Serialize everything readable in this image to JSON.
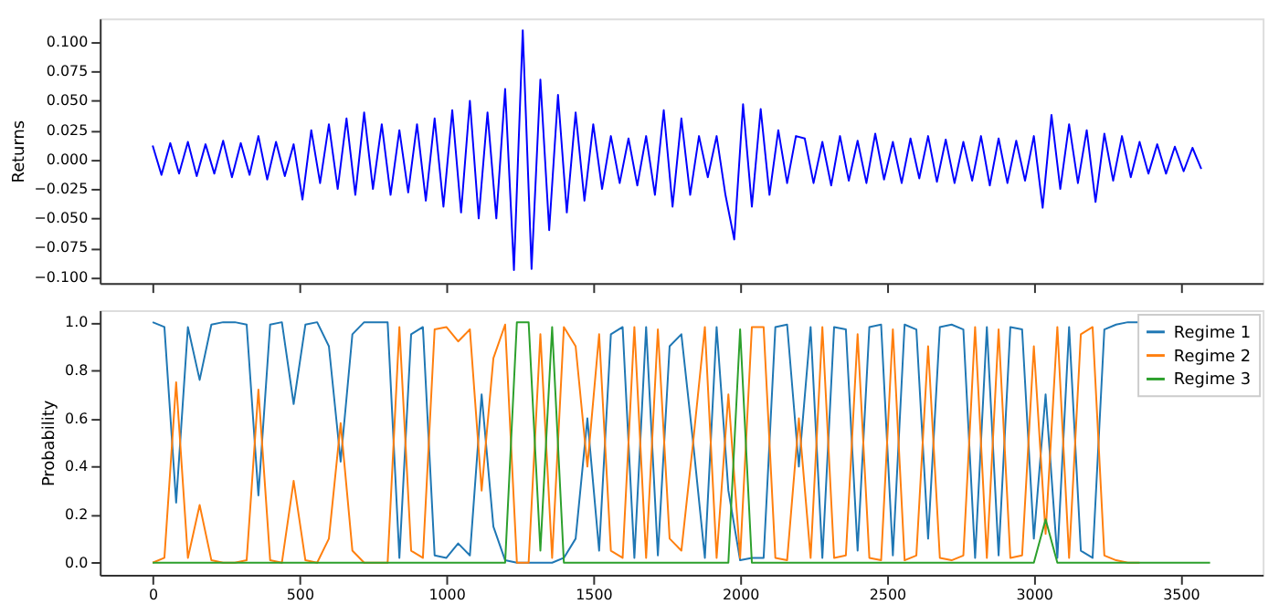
{
  "chart_data": [
    {
      "type": "line",
      "ylabel": "Returns",
      "tick_labels": "y",
      "grid": false,
      "line_style": "solid",
      "xlim": [
        -180,
        3779
      ],
      "ylim": [
        -0.105,
        0.12
      ],
      "xticks": [
        {
          "value": 0,
          "label": null
        },
        {
          "value": 500,
          "label": null
        },
        {
          "value": 1000,
          "label": null
        },
        {
          "value": 1500,
          "label": null
        },
        {
          "value": 2000,
          "label": null
        },
        {
          "value": 2500,
          "label": null
        },
        {
          "value": 3000,
          "label": null
        },
        {
          "value": 3500,
          "label": null
        }
      ],
      "yticks": [
        {
          "value": -0.1,
          "label": "−0.100"
        },
        {
          "value": -0.075,
          "label": "−0.075"
        },
        {
          "value": -0.05,
          "label": "−0.050"
        },
        {
          "value": -0.025,
          "label": "−0.025"
        },
        {
          "value": 0,
          "label": "0.000"
        },
        {
          "value": 0.025,
          "label": "0.025"
        },
        {
          "value": 0.05,
          "label": "0.050"
        },
        {
          "value": 0.075,
          "label": "0.075"
        },
        {
          "value": 0.1,
          "label": "0.100"
        }
      ],
      "series": [
        {
          "color": "#0000ff",
          "x": [
            0,
            30,
            60,
            90,
            120,
            150,
            180,
            210,
            240,
            270,
            300,
            330,
            360,
            390,
            420,
            450,
            480,
            510,
            540,
            570,
            600,
            630,
            660,
            690,
            720,
            750,
            780,
            810,
            840,
            870,
            900,
            930,
            960,
            990,
            1020,
            1050,
            1080,
            1110,
            1140,
            1170,
            1200,
            1230,
            1260,
            1290,
            1320,
            1350,
            1380,
            1410,
            1440,
            1470,
            1500,
            1530,
            1560,
            1590,
            1620,
            1650,
            1680,
            1710,
            1740,
            1770,
            1800,
            1830,
            1860,
            1890,
            1920,
            1950,
            1980,
            2010,
            2040,
            2070,
            2100,
            2130,
            2160,
            2190,
            2220,
            2250,
            2280,
            2310,
            2340,
            2370,
            2400,
            2430,
            2460,
            2490,
            2520,
            2550,
            2580,
            2610,
            2640,
            2670,
            2700,
            2730,
            2760,
            2790,
            2820,
            2850,
            2880,
            2910,
            2940,
            2970,
            3000,
            3030,
            3060,
            3090,
            3120,
            3150,
            3180,
            3210,
            3240,
            3270,
            3300,
            3330,
            3360,
            3390,
            3420,
            3450,
            3480,
            3510,
            3540,
            3570
          ],
          "values": [
            0.012,
            -0.013,
            0.014,
            -0.012,
            0.015,
            -0.014,
            0.013,
            -0.012,
            0.016,
            -0.015,
            0.014,
            -0.013,
            0.02,
            -0.017,
            0.015,
            -0.014,
            0.013,
            -0.034,
            0.025,
            -0.02,
            0.03,
            -0.025,
            0.035,
            -0.03,
            0.04,
            -0.025,
            0.03,
            -0.03,
            0.025,
            -0.028,
            0.03,
            -0.035,
            0.035,
            -0.04,
            0.042,
            -0.045,
            0.05,
            -0.05,
            0.04,
            -0.05,
            0.06,
            -0.094,
            0.11,
            -0.093,
            0.068,
            -0.06,
            0.055,
            -0.045,
            0.04,
            -0.035,
            0.03,
            -0.025,
            0.02,
            -0.02,
            0.018,
            -0.022,
            0.02,
            -0.03,
            0.042,
            -0.04,
            0.035,
            -0.03,
            0.02,
            -0.015,
            0.02,
            -0.03,
            -0.068,
            0.047,
            -0.04,
            0.043,
            -0.03,
            0.025,
            -0.02,
            0.02,
            0.018,
            -0.02,
            0.015,
            -0.022,
            0.02,
            -0.018,
            0.016,
            -0.02,
            0.022,
            -0.017,
            0.015,
            -0.02,
            0.018,
            -0.016,
            0.02,
            -0.019,
            0.017,
            -0.02,
            0.015,
            -0.018,
            0.02,
            -0.022,
            0.018,
            -0.02,
            0.016,
            -0.018,
            0.02,
            -0.041,
            0.038,
            -0.025,
            0.03,
            -0.02,
            0.025,
            -0.036,
            0.022,
            -0.018,
            0.02,
            -0.015,
            0.015,
            -0.012,
            0.013,
            -0.012,
            0.011,
            -0.01,
            0.01,
            -0.008
          ]
        }
      ]
    },
    {
      "type": "line",
      "ylabel": "Probability",
      "grid": false,
      "legend": "top right",
      "line_style": "solid",
      "xlim": [
        -180,
        3779
      ],
      "ylim": [
        -0.05,
        1.05
      ],
      "xticks": [
        0,
        500,
        1000,
        1500,
        2000,
        2500,
        3000,
        3500
      ],
      "yticks": [
        {
          "value": 0,
          "label": "0.0"
        },
        {
          "value": 0.2,
          "label": "0.2"
        },
        {
          "value": 0.4,
          "label": "0.4"
        },
        {
          "value": 0.6,
          "label": "0.6"
        },
        {
          "value": 0.8,
          "label": "0.8"
        },
        {
          "value": 1,
          "label": "1.0"
        }
      ],
      "x": [
        0,
        40,
        80,
        120,
        160,
        200,
        240,
        280,
        320,
        360,
        400,
        440,
        480,
        520,
        560,
        600,
        640,
        680,
        720,
        760,
        800,
        840,
        880,
        920,
        960,
        1000,
        1040,
        1080,
        1120,
        1160,
        1200,
        1240,
        1280,
        1320,
        1360,
        1400,
        1440,
        1480,
        1520,
        1560,
        1600,
        1640,
        1680,
        1720,
        1760,
        1800,
        1840,
        1880,
        1920,
        1960,
        2000,
        2040,
        2080,
        2120,
        2160,
        2200,
        2240,
        2280,
        2320,
        2360,
        2400,
        2440,
        2480,
        2520,
        2560,
        2600,
        2640,
        2680,
        2720,
        2760,
        2800,
        2840,
        2880,
        2920,
        2960,
        3000,
        3040,
        3080,
        3120,
        3160,
        3200,
        3240,
        3280,
        3320,
        3360,
        3400,
        3440,
        3480,
        3520,
        3560,
        3600
      ],
      "series": [
        {
          "name": "Regime 1",
          "color": "#1f77b4",
          "values": [
            1,
            0.98,
            0.25,
            0.98,
            0.76,
            0.99,
            1,
            1,
            0.99,
            0.28,
            0.99,
            1,
            0.66,
            0.99,
            1,
            0.9,
            0.42,
            0.95,
            1,
            1,
            1,
            0.02,
            0.95,
            0.98,
            0.03,
            0.02,
            0.08,
            0.03,
            0.7,
            0.15,
            0.01,
            0,
            0,
            0,
            0,
            0.02,
            0.1,
            0.6,
            0.05,
            0.95,
            0.98,
            0.02,
            0.98,
            0.03,
            0.9,
            0.95,
            0.5,
            0.02,
            0.98,
            0.3,
            0.01,
            0.02,
            0.02,
            0.98,
            0.99,
            0.4,
            0.98,
            0.02,
            0.98,
            0.97,
            0.05,
            0.98,
            0.99,
            0.03,
            0.99,
            0.97,
            0.1,
            0.98,
            0.99,
            0.97,
            0.02,
            0.98,
            0.03,
            0.98,
            0.97,
            0.1,
            0.7,
            0.02,
            0.98,
            0.05,
            0.02,
            0.97,
            0.99,
            1,
            1,
            null,
            null,
            null,
            null,
            null,
            null
          ]
        },
        {
          "name": "Regime 2",
          "color": "#ff7f0e",
          "values": [
            0,
            0.02,
            0.75,
            0.02,
            0.24,
            0.01,
            0,
            0,
            0.01,
            0.72,
            0.01,
            0,
            0.34,
            0.01,
            0,
            0.1,
            0.58,
            0.05,
            0,
            0,
            0,
            0.98,
            0.05,
            0.02,
            0.97,
            0.98,
            0.92,
            0.97,
            0.3,
            0.85,
            0.99,
            0,
            0,
            0.95,
            0.02,
            0.98,
            0.9,
            0.4,
            0.95,
            0.05,
            0.02,
            0.98,
            0.02,
            0.97,
            0.1,
            0.05,
            0.5,
            0.98,
            0.02,
            0.7,
            0.02,
            0.98,
            0.98,
            0.02,
            0.01,
            0.6,
            0.02,
            0.98,
            0.02,
            0.03,
            0.95,
            0.02,
            0.01,
            0.97,
            0.01,
            0.03,
            0.9,
            0.02,
            0.01,
            0.03,
            0.98,
            0.02,
            0.97,
            0.02,
            0.03,
            0.9,
            0.12,
            0.98,
            0.02,
            0.95,
            0.98,
            0.03,
            0.01,
            0,
            0,
            null,
            null,
            null,
            null,
            null,
            null
          ]
        },
        {
          "name": "Regime 3",
          "color": "#2ca02c",
          "values": [
            0,
            0,
            0,
            0,
            0,
            0,
            0,
            0,
            0,
            0,
            0,
            0,
            0,
            0,
            0,
            0,
            0,
            0,
            0,
            0,
            0,
            0,
            0,
            0,
            0,
            0,
            0,
            0,
            0,
            0,
            0,
            1,
            1,
            0.05,
            0.98,
            0,
            0,
            0,
            0,
            0,
            0,
            0,
            0,
            0,
            0,
            0,
            0,
            0,
            0,
            0,
            0.97,
            0,
            0,
            0,
            0,
            0,
            0,
            0,
            0,
            0,
            0,
            0,
            0,
            0,
            0,
            0,
            0,
            0,
            0,
            0,
            0,
            0,
            0,
            0,
            0,
            0,
            0.18,
            0,
            0,
            0,
            0,
            0,
            0,
            0,
            0,
            0,
            0,
            0,
            0,
            0,
            0
          ]
        }
      ]
    }
  ]
}
